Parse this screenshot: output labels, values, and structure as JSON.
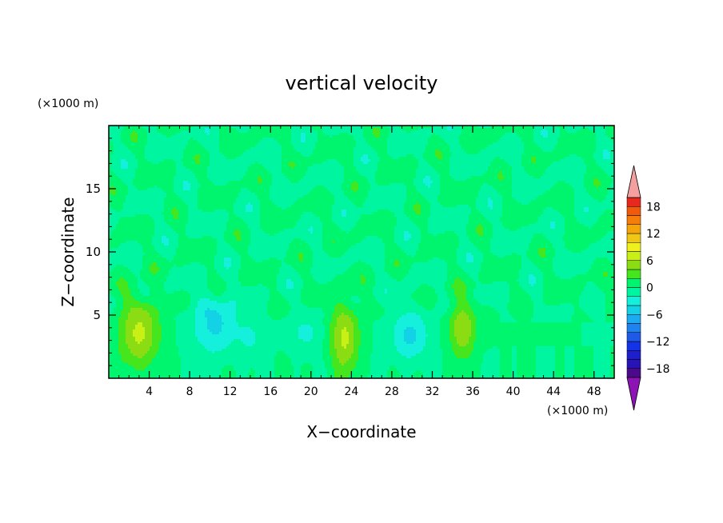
{
  "chart_data": {
    "type": "heatmap",
    "title": "vertical velocity",
    "xlabel": "X−coordinate",
    "ylabel": "Z−coordinate",
    "x_units": "(×1000 m)",
    "y_units": "(×1000 m)",
    "xlim": [
      0,
      50
    ],
    "ylim": [
      0,
      20
    ],
    "xticks": [
      4,
      8,
      12,
      16,
      20,
      24,
      28,
      32,
      36,
      40,
      44,
      48
    ],
    "yticks": [
      5,
      10,
      15
    ],
    "colorbar": {
      "levels": [
        -20,
        -18,
        -16,
        -14,
        -12,
        -10,
        -8,
        -6,
        -4,
        -2,
        0,
        2,
        4,
        6,
        8,
        10,
        12,
        14,
        16,
        18,
        20
      ],
      "colors": [
        "#4b0a8c",
        "#2814b4",
        "#1e1ecd",
        "#1432e6",
        "#1e5ae6",
        "#1e82f0",
        "#1eaaf0",
        "#14d2e6",
        "#14f0dc",
        "#00f5a0",
        "#00f56e",
        "#46e61e",
        "#8cdc14",
        "#c8f014",
        "#f0f01e",
        "#f0c814",
        "#f5a50a",
        "#f57d0a",
        "#f05a0a",
        "#e6281e",
        "#e61414"
      ],
      "over_color": "#f4a0a0",
      "under_color": "#8c14b4",
      "tick_labels": [
        "18",
        "12",
        "6",
        "0",
        "−6",
        "−12",
        "−18"
      ],
      "tick_values": [
        18,
        12,
        6,
        0,
        -6,
        -12,
        -18
      ]
    },
    "features": [
      {
        "x": 3.0,
        "z": 3.6,
        "sx": 1.4,
        "sz": 2.0,
        "w": 6.5
      },
      {
        "x": 23.3,
        "z": 3.2,
        "sx": 1.0,
        "sz": 2.0,
        "w": 6.5
      },
      {
        "x": 35.0,
        "z": 3.9,
        "sx": 0.9,
        "sz": 1.6,
        "w": 6.0
      },
      {
        "x": 10.5,
        "z": 4.3,
        "sx": 1.6,
        "sz": 1.7,
        "w": -4.5
      },
      {
        "x": 29.8,
        "z": 3.4,
        "sx": 1.3,
        "sz": 1.4,
        "w": -4.5
      },
      {
        "x": 19.5,
        "z": 3.6,
        "sx": 1.2,
        "sz": 1.0,
        "w": -2.5
      },
      {
        "x": 14.0,
        "z": 3.2,
        "sx": 0.8,
        "sz": 1.0,
        "w": -2.2
      }
    ]
  }
}
